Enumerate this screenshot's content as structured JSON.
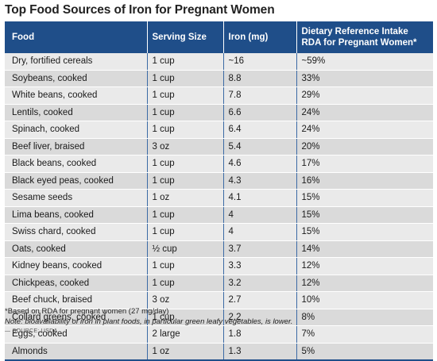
{
  "title": "Top Food Sources of Iron for Pregnant Women",
  "columns": [
    "Food",
    "Serving Size",
    "Iron (mg)",
    "Dietary Reference Intake\nRDA for Pregnant Women*"
  ],
  "rows": [
    {
      "food": "Dry, fortified cereals",
      "serving": "1 cup",
      "iron": "~16",
      "rda": "~59%"
    },
    {
      "food": "Soybeans, cooked",
      "serving": "1 cup",
      "iron": "8.8",
      "rda": "33%"
    },
    {
      "food": "White beans, cooked",
      "serving": "1 cup",
      "iron": "7.8",
      "rda": "29%"
    },
    {
      "food": "Lentils, cooked",
      "serving": "1 cup",
      "iron": "6.6",
      "rda": "24%"
    },
    {
      "food": "Spinach, cooked",
      "serving": "1 cup",
      "iron": "6.4",
      "rda": "24%"
    },
    {
      "food": "Beef liver, braised",
      "serving": "3 oz",
      "iron": "5.4",
      "rda": "20%"
    },
    {
      "food": "Black beans, cooked",
      "serving": "1 cup",
      "iron": "4.6",
      "rda": "17%"
    },
    {
      "food": "Black eyed peas, cooked",
      "serving": "1 cup",
      "iron": "4.3",
      "rda": "16%"
    },
    {
      "food": "Sesame seeds",
      "serving": "1 oz",
      "iron": "4.1",
      "rda": "15%"
    },
    {
      "food": "Lima beans, cooked",
      "serving": "1 cup",
      "iron": "4",
      "rda": "15%"
    },
    {
      "food": "Swiss chard, cooked",
      "serving": "1 cup",
      "iron": "4",
      "rda": "15%"
    },
    {
      "food": "Oats, cooked",
      "serving": "½ cup",
      "iron": "3.7",
      "rda": "14%"
    },
    {
      "food": "Kidney beans, cooked",
      "serving": "1 cup",
      "iron": "3.3",
      "rda": "12%"
    },
    {
      "food": "Chickpeas, cooked",
      "serving": "1 cup",
      "iron": "3.2",
      "rda": "12%"
    },
    {
      "food": "Beef chuck, braised",
      "serving": "3 oz",
      "iron": "2.7",
      "rda": "10%"
    },
    {
      "food": "Collard greens, cooked",
      "serving": "1 cup",
      "iron": "2.2",
      "rda": "8%"
    },
    {
      "food": "Eggs, cooked",
      "serving": "2 large",
      "iron": "1.8",
      "rda": "7%"
    },
    {
      "food": "Almonds",
      "serving": "1 oz",
      "iron": "1.3",
      "rda": "5%"
    }
  ],
  "footnotes": {
    "basis": "*Based on RDA for pregnant women (27 mg/day)",
    "note": "Note: bioavailability of iron in plant foods, in particular green leafy vegetables, is lower.",
    "source": "— SOURCE: USDA"
  },
  "colors": {
    "header_bg": "#1f4e89",
    "row_light": "#eaeaea",
    "row_dark": "#dadada"
  }
}
